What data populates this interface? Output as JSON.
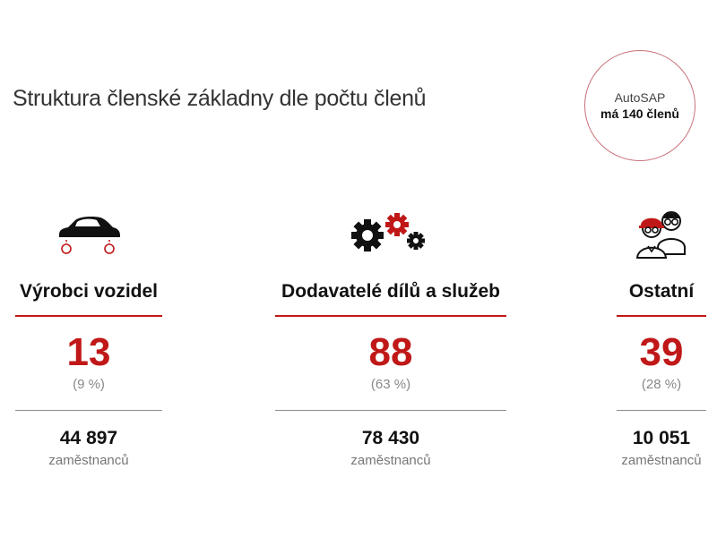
{
  "title": "Struktura členské základny dle počtu členů",
  "badge": {
    "line1": "AutoSAP",
    "line2": "má 140 členů"
  },
  "icons": {
    "accent": "#c01818",
    "dark": "#111111"
  },
  "columns": [
    {
      "icon": "car-icon",
      "name": "Výrobci vozidel",
      "count": "13",
      "percent": "(9 %)",
      "employees": "44 897",
      "employees_label": "zaměstnanců"
    },
    {
      "icon": "gears-icon",
      "name": "Dodavatelé dílů a služeb",
      "count": "88",
      "percent": "(63 %)",
      "employees": "78 430",
      "employees_label": "zaměstnanců"
    },
    {
      "icon": "workers-icon",
      "name": "Ostatní",
      "count": "39",
      "percent": "(28 %)",
      "employees": "10 051",
      "employees_label": "zaměstnanců"
    }
  ]
}
